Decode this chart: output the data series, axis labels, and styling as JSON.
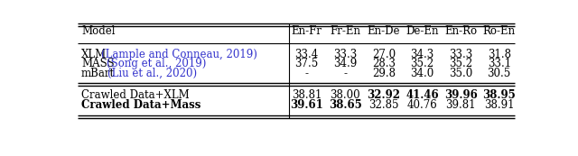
{
  "col_headers": [
    "Model",
    "En-Fr",
    "Fr-En",
    "En-De",
    "De-En",
    "En-Ro",
    "Ro-En"
  ],
  "rows": [
    {
      "model_plain": "XLM",
      "model_cite": "(Lample and Conneau, 2019)",
      "values": [
        "33.4",
        "33.3",
        "27.0",
        "34.3",
        "33.3",
        "31.8"
      ],
      "bold": [
        false,
        false,
        false,
        false,
        false,
        false
      ],
      "model_bold": false
    },
    {
      "model_plain": "MASS",
      "model_cite": "(Song et al., 2019)",
      "values": [
        "37.5",
        "34.9",
        "28.3",
        "35.2",
        "35.2",
        "33.1"
      ],
      "bold": [
        false,
        false,
        false,
        false,
        false,
        false
      ],
      "model_bold": false
    },
    {
      "model_plain": "mBart",
      "model_cite": "(Liu et al., 2020)",
      "values": [
        "-",
        "-",
        "29.8",
        "34.0",
        "35.0",
        "30.5"
      ],
      "bold": [
        false,
        false,
        false,
        false,
        false,
        false
      ],
      "model_bold": false
    },
    {
      "model_plain": "Crawled Data+XLM",
      "model_cite": "",
      "values": [
        "38.81",
        "38.00",
        "32.92",
        "41.46",
        "39.96",
        "38.95"
      ],
      "bold": [
        false,
        false,
        true,
        true,
        true,
        true
      ],
      "model_bold": false
    },
    {
      "model_plain": "Crawled Data+Mass",
      "model_cite": "",
      "values": [
        "39.61",
        "38.65",
        "32.85",
        "40.76",
        "39.81",
        "38.91"
      ],
      "bold": [
        true,
        true,
        false,
        false,
        false,
        false
      ],
      "model_bold": true
    }
  ],
  "cite_color": "#3333cc",
  "black": "#000000",
  "bg_color": "#ffffff",
  "fontsize": 8.5,
  "fig_width": 6.4,
  "fig_height": 1.73,
  "dpi": 100
}
